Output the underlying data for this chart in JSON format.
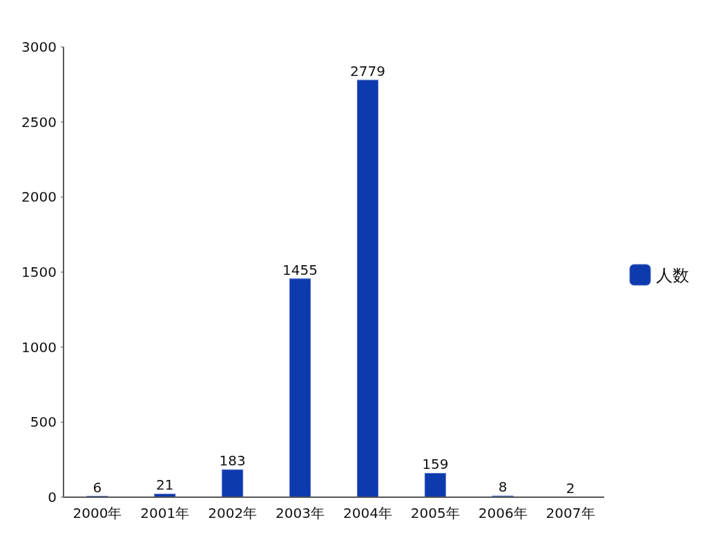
{
  "chart_data": {
    "type": "bar",
    "categories": [
      "2000年",
      "2001年",
      "2002年",
      "2003年",
      "2004年",
      "2005年",
      "2006年",
      "2007年"
    ],
    "series": [
      {
        "name": "人数",
        "color": "#0d3aad",
        "values": [
          6,
          21,
          183,
          1455,
          2779,
          159,
          8,
          2
        ]
      }
    ],
    "ylim": [
      0,
      3000
    ],
    "yticks": [
      0,
      500,
      1000,
      1500,
      2000,
      2500,
      3000
    ],
    "data_labels": true,
    "legend": "right"
  }
}
